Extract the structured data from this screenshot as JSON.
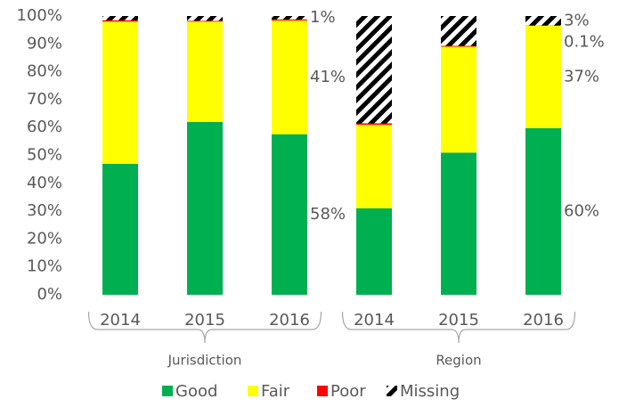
{
  "chart_data": {
    "type": "stacked_bar",
    "groups": [
      {
        "label": "Jurisdiction",
        "categories": [
          "2014",
          "2015",
          "2016"
        ]
      },
      {
        "label": "Region",
        "categories": [
          "2014",
          "2015",
          "2016"
        ]
      }
    ],
    "series": [
      {
        "name": "Good",
        "color": "#00b050",
        "values": [
          47,
          62,
          57.6,
          31,
          51,
          59.8
        ],
        "value_labels": [
          null,
          null,
          "58%",
          null,
          null,
          "60%"
        ]
      },
      {
        "name": "Fair",
        "color": "#ffff00",
        "values": [
          51,
          36,
          40.8,
          30,
          38,
          36.7
        ],
        "value_labels": [
          null,
          null,
          "41%",
          null,
          null,
          "37%"
        ]
      },
      {
        "name": "Poor",
        "color": "#ff0000",
        "values": [
          0.5,
          0.3,
          0.4,
          0.5,
          0.3,
          0.1
        ],
        "value_labels": [
          null,
          null,
          null,
          null,
          null,
          "0.1%"
        ]
      },
      {
        "name": "Missing",
        "color": "hatch",
        "values": [
          1.5,
          1.7,
          1.2,
          38.5,
          10.7,
          3.4
        ],
        "value_labels": [
          null,
          null,
          "1%",
          null,
          null,
          "3%"
        ]
      }
    ],
    "ylim": [
      0,
      100
    ],
    "yticks": [
      {
        "value": 0,
        "label": "0%"
      },
      {
        "value": 10,
        "label": "10%"
      },
      {
        "value": 20,
        "label": "20%"
      },
      {
        "value": 30,
        "label": "30%"
      },
      {
        "value": 40,
        "label": "40%"
      },
      {
        "value": 50,
        "label": "50%"
      },
      {
        "value": 60,
        "label": "60%"
      },
      {
        "value": 70,
        "label": "70%"
      },
      {
        "value": 80,
        "label": "80%"
      },
      {
        "value": 90,
        "label": "90%"
      },
      {
        "value": 100,
        "label": "100%"
      }
    ],
    "grid": false,
    "legend": "bottom"
  }
}
